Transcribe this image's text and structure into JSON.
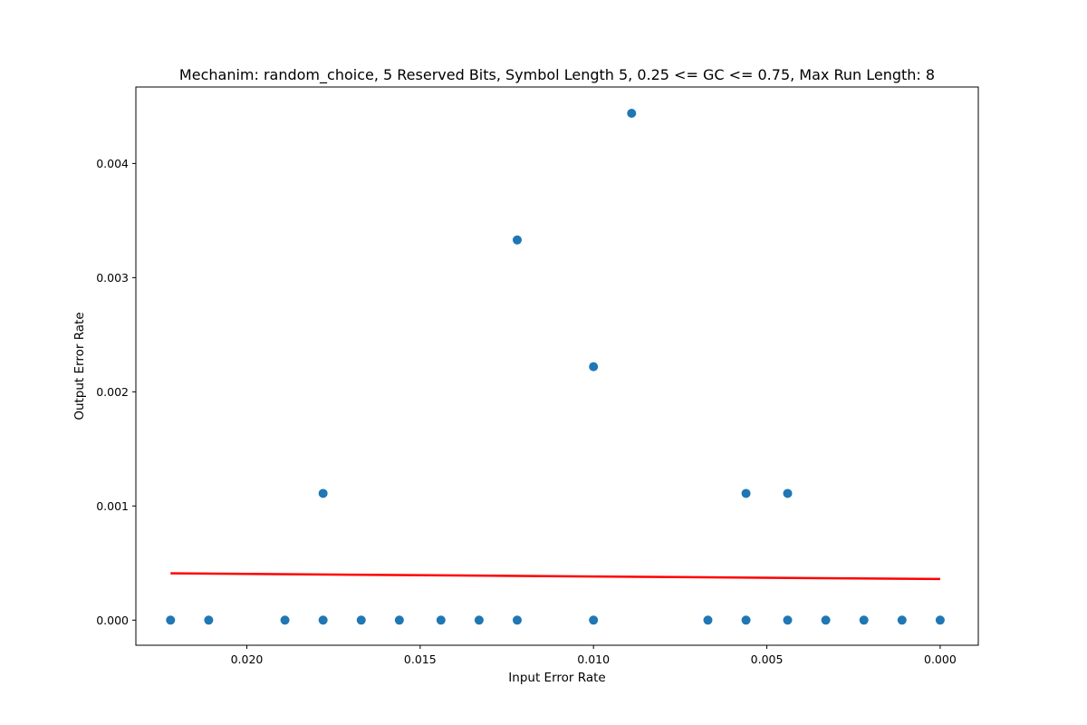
{
  "chart_data": {
    "type": "scatter",
    "title": "Mechanim: random_choice, 5 Reserved Bits, Symbol Length 5, 0.25 <= GC <= 0.75, Max Run Length: 8",
    "xlabel": "Input Error Rate",
    "ylabel": "Output Error Rate",
    "x_inverted": true,
    "xlim": [
      0.0232,
      -0.0011
    ],
    "ylim": [
      -0.00022,
      0.00467
    ],
    "x_ticks": [
      0.02,
      0.015,
      0.01,
      0.005,
      0.0
    ],
    "x_tick_labels": [
      "0.020",
      "0.015",
      "0.010",
      "0.005",
      "0.000"
    ],
    "y_ticks": [
      0.0,
      0.001,
      0.002,
      0.003,
      0.004
    ],
    "y_tick_labels": [
      "0.000",
      "0.001",
      "0.002",
      "0.003",
      "0.004"
    ],
    "grid": false,
    "points": [
      {
        "x": 0.0222,
        "y": 0.0
      },
      {
        "x": 0.0211,
        "y": 0.0
      },
      {
        "x": 0.0189,
        "y": 0.0
      },
      {
        "x": 0.0178,
        "y": 0.0
      },
      {
        "x": 0.0167,
        "y": 0.0
      },
      {
        "x": 0.0156,
        "y": 0.0
      },
      {
        "x": 0.0144,
        "y": 0.0
      },
      {
        "x": 0.0133,
        "y": 0.0
      },
      {
        "x": 0.0122,
        "y": 0.0
      },
      {
        "x": 0.01,
        "y": 0.0
      },
      {
        "x": 0.0067,
        "y": 0.0
      },
      {
        "x": 0.0056,
        "y": 0.0
      },
      {
        "x": 0.0044,
        "y": 0.0
      },
      {
        "x": 0.0033,
        "y": 0.0
      },
      {
        "x": 0.0022,
        "y": 0.0
      },
      {
        "x": 0.0011,
        "y": 0.0
      },
      {
        "x": 0.0,
        "y": 0.0
      },
      {
        "x": 0.0178,
        "y": 0.00111
      },
      {
        "x": 0.0122,
        "y": 0.00333
      },
      {
        "x": 0.01,
        "y": 0.00222
      },
      {
        "x": 0.0089,
        "y": 0.00444
      },
      {
        "x": 0.0056,
        "y": 0.00111
      },
      {
        "x": 0.0044,
        "y": 0.00111
      }
    ],
    "trend_line": {
      "x": [
        0.0222,
        0.0
      ],
      "y": [
        0.00041,
        0.00036
      ]
    },
    "colors": {
      "points": "#1f77b4",
      "trend_line": "#ff0000",
      "axes": "#000000"
    }
  }
}
